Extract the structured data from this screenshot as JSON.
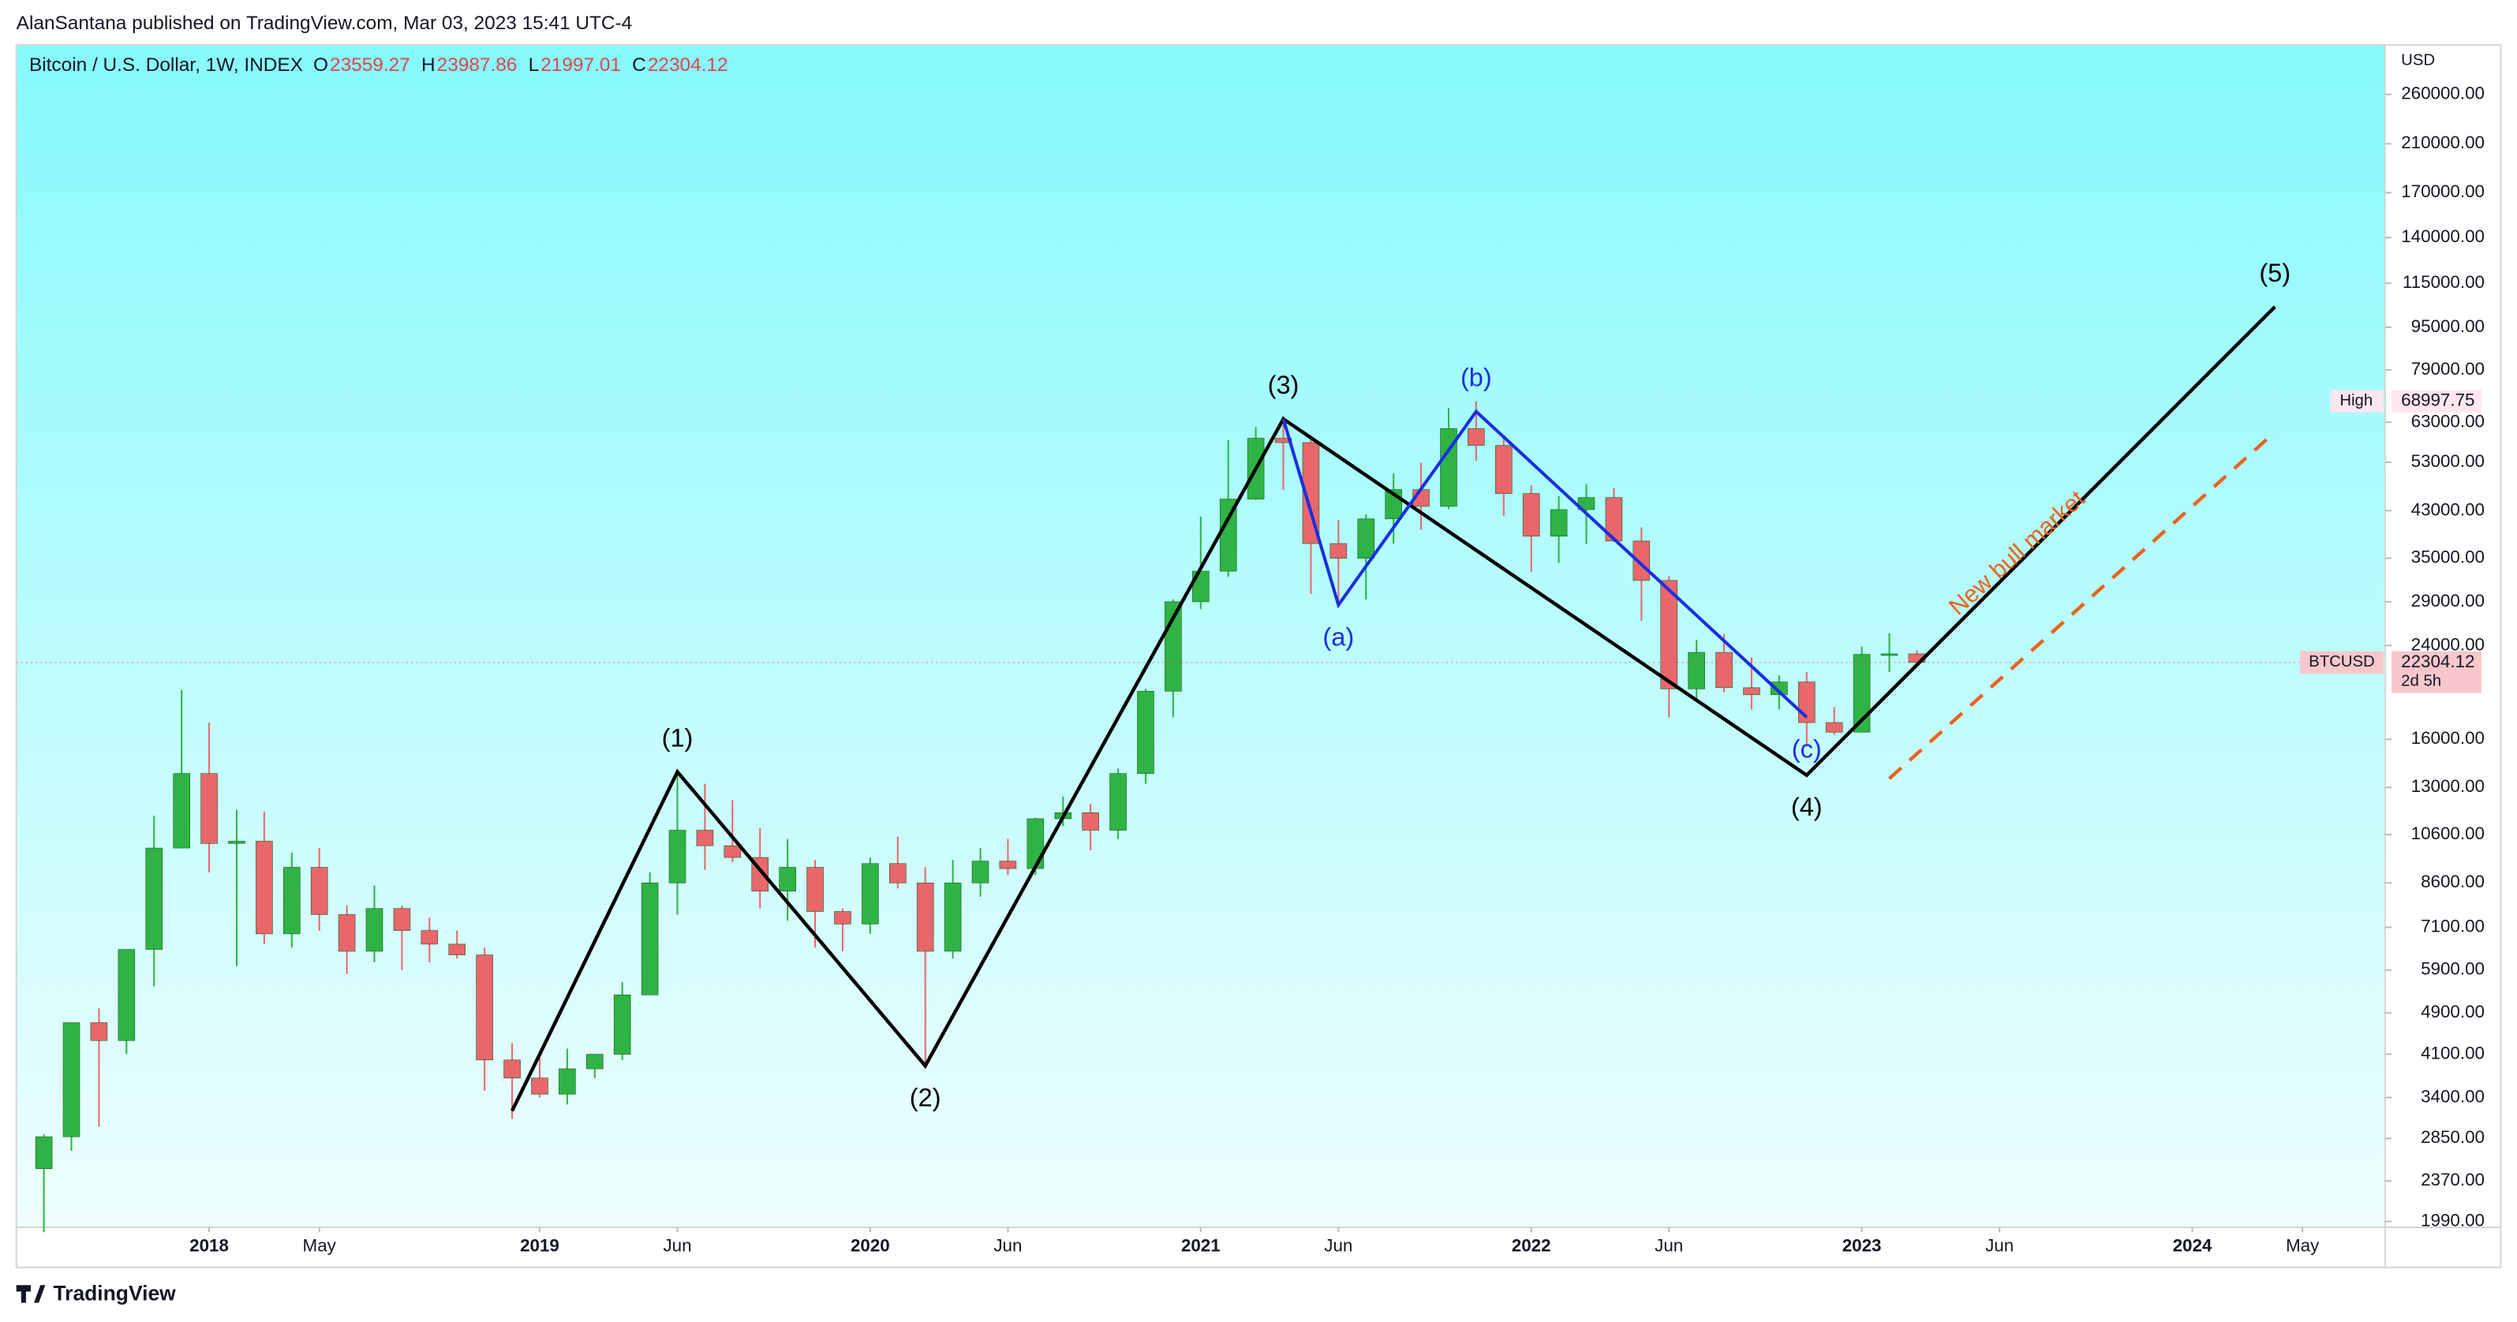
{
  "chart_data": {
    "type": "candlestick",
    "publisher": "AlanSantana published on TradingView.com, Mar 03, 2023 15:41 UTC-4",
    "symbol": "Bitcoin / U.S. Dollar, 1W, INDEX",
    "ohlc_legend": [
      {
        "key": "O",
        "value": 23559.27
      },
      {
        "key": "H",
        "value": 23987.86
      },
      {
        "key": "L",
        "value": 21997.01
      },
      {
        "key": "C",
        "value": 22304.12
      }
    ],
    "currency": "USD",
    "brand": "TradingView",
    "log_scale": true,
    "up_color": "#2fb344",
    "down_color": "#e8676b",
    "x": [
      "2017-07",
      "2017-08",
      "2017-09",
      "2017-10",
      "2017-11",
      "2017-12",
      "2018-01",
      "2018-02",
      "2018-03",
      "2018-04",
      "2018-05",
      "2018-06",
      "2018-07",
      "2018-08",
      "2018-09",
      "2018-10",
      "2018-11",
      "2018-12",
      "2019-01",
      "2019-02",
      "2019-03",
      "2019-04",
      "2019-05",
      "2019-06",
      "2019-07",
      "2019-08",
      "2019-09",
      "2019-10",
      "2019-11",
      "2019-12",
      "2020-01",
      "2020-02",
      "2020-03",
      "2020-04",
      "2020-05",
      "2020-06",
      "2020-07",
      "2020-08",
      "2020-09",
      "2020-10",
      "2020-11",
      "2020-12",
      "2021-01",
      "2021-02",
      "2021-03",
      "2021-04",
      "2021-05",
      "2021-06",
      "2021-07",
      "2021-08",
      "2021-09",
      "2021-10",
      "2021-11",
      "2021-12",
      "2022-01",
      "2022-02",
      "2022-03",
      "2022-04",
      "2022-05",
      "2022-06",
      "2022-07",
      "2022-08",
      "2022-09",
      "2022-10",
      "2022-11",
      "2022-12",
      "2023-01",
      "2023-02",
      "2023-03"
    ],
    "open": [
      2500,
      2870,
      4700,
      4350,
      6450,
      10000,
      13800,
      10200,
      10300,
      6900,
      9200,
      7500,
      6400,
      7700,
      7000,
      6600,
      6300,
      4000,
      3700,
      3450,
      3850,
      4100,
      5300,
      8600,
      10800,
      10100,
      9600,
      8300,
      9200,
      7600,
      7200,
      9350,
      8600,
      6400,
      8600,
      9450,
      9150,
      11350,
      11650,
      10800,
      13800,
      19700,
      29000,
      33100,
      45200,
      58800,
      57700,
      37300,
      35000,
      41500,
      47100,
      43800,
      61300,
      57000,
      46300,
      38500,
      43200,
      45500,
      37700,
      31800,
      19900,
      23300,
      20000,
      19400,
      20500,
      17200,
      16500,
      23100,
      23150
    ],
    "high": [
      2900,
      4700,
      5000,
      6450,
      11500,
      19800,
      17200,
      11800,
      11700,
      9800,
      10000,
      7800,
      8500,
      7800,
      7400,
      7000,
      6500,
      4300,
      4100,
      4200,
      4100,
      5600,
      9000,
      13900,
      13200,
      12300,
      10900,
      10400,
      9500,
      7700,
      9600,
      10500,
      9200,
      9500,
      10000,
      10400,
      11400,
      12500,
      12100,
      14100,
      19900,
      29300,
      41900,
      58300,
      61700,
      64800,
      59500,
      41300,
      42300,
      50500,
      52900,
      67000,
      69000,
      59000,
      48000,
      45800,
      48200,
      47400,
      40000,
      32400,
      24600,
      25200,
      22800,
      21100,
      21400,
      18400,
      23900,
      25300,
      23500
    ],
    "low": [
      1900,
      2700,
      3000,
      4100,
      5500,
      10000,
      9000,
      6000,
      6600,
      6500,
      7000,
      5800,
      6100,
      5900,
      6100,
      6200,
      3500,
      3100,
      3400,
      3300,
      3700,
      4000,
      5300,
      7500,
      9100,
      9400,
      7700,
      7300,
      6500,
      6400,
      6900,
      8400,
      3900,
      6200,
      8100,
      8900,
      8900,
      11000,
      9900,
      10400,
      13200,
      17600,
      28100,
      32300,
      45000,
      47000,
      30000,
      28800,
      29300,
      37300,
      39600,
      43300,
      53300,
      42000,
      33000,
      34300,
      37200,
      37600,
      26700,
      17600,
      18800,
      19600,
      18200,
      18200,
      15500,
      16300,
      16500,
      21400,
      21997
    ],
    "close": [
      2870,
      4700,
      4350,
      6450,
      10000,
      13800,
      10200,
      10300,
      6900,
      9200,
      7500,
      6400,
      7700,
      7000,
      6600,
      6300,
      4000,
      3700,
      3450,
      3850,
      4100,
      5300,
      8600,
      10800,
      10100,
      9600,
      8300,
      9200,
      7600,
      7200,
      9350,
      8600,
      6400,
      8600,
      9450,
      9150,
      11350,
      11650,
      10800,
      13800,
      19700,
      29000,
      33100,
      45200,
      58800,
      57700,
      37300,
      35000,
      41500,
      47100,
      43800,
      61300,
      57000,
      46300,
      38500,
      43200,
      45500,
      37700,
      31800,
      19900,
      23300,
      20000,
      19400,
      20500,
      17200,
      16500,
      23100,
      23150,
      22304
    ],
    "xlim": [
      "2017-06",
      "2024-08"
    ],
    "xticks": [
      {
        "value": "2018-01",
        "label": "2018"
      },
      {
        "value": "2018-05",
        "label": "May"
      },
      {
        "value": "2019-01",
        "label": "2019"
      },
      {
        "value": "2019-06",
        "label": "Jun"
      },
      {
        "value": "2020-01",
        "label": "2020"
      },
      {
        "value": "2020-06",
        "label": "Jun"
      },
      {
        "value": "2021-01",
        "label": "2021"
      },
      {
        "value": "2021-06",
        "label": "Jun"
      },
      {
        "value": "2022-01",
        "label": "2022"
      },
      {
        "value": "2022-06",
        "label": "Jun"
      },
      {
        "value": "2023-01",
        "label": "2023"
      },
      {
        "value": "2023-06",
        "label": "Jun"
      },
      {
        "value": "2024-01",
        "label": "2024"
      },
      {
        "value": "2024-05",
        "label": "May"
      }
    ],
    "ylim": [
      1940,
      322000
    ],
    "yticks": [
      {
        "value": 260000,
        "label": "260000.00"
      },
      {
        "value": 210000,
        "label": "210000.00"
      },
      {
        "value": 170000,
        "label": "170000.00"
      },
      {
        "value": 140000,
        "label": "140000.00"
      },
      {
        "value": 115000,
        "label": "115000.00"
      },
      {
        "value": 95000,
        "label": "95000.00"
      },
      {
        "value": 79000,
        "label": "79000.00"
      },
      {
        "value": 63000,
        "label": "63000.00"
      },
      {
        "value": 53000,
        "label": "53000.00"
      },
      {
        "value": 43000,
        "label": "43000.00"
      },
      {
        "value": 35000,
        "label": "35000.00"
      },
      {
        "value": 29000,
        "label": "29000.00"
      },
      {
        "value": 24000,
        "label": "24000.00"
      },
      {
        "value": 16000,
        "label": "16000.00"
      },
      {
        "value": 13000,
        "label": "13000.00"
      },
      {
        "value": 10600,
        "label": "10600.00"
      },
      {
        "value": 8600,
        "label": "8600.00"
      },
      {
        "value": 7100,
        "label": "7100.00"
      },
      {
        "value": 5900,
        "label": "5900.00"
      },
      {
        "value": 4900,
        "label": "4900.00"
      },
      {
        "value": 4100,
        "label": "4100.00"
      },
      {
        "value": 3400,
        "label": "3400.00"
      },
      {
        "value": 2850,
        "label": "2850.00"
      },
      {
        "value": 2370,
        "label": "2370.00"
      },
      {
        "value": 1990,
        "label": "1990.00"
      }
    ],
    "price_markers": [
      {
        "name": "High",
        "value": 68997.75,
        "color": "#ffe6ef"
      },
      {
        "name": "BTCUSD",
        "value": 22304.12,
        "countdown": "2d 5h",
        "color": "#f7c7cb"
      }
    ],
    "waves": [
      {
        "color": "#000000",
        "points": [
          {
            "x": "2018-12",
            "y": 3210,
            "label": null
          },
          {
            "x": "2019-06",
            "y": 13900,
            "label": "(1)"
          },
          {
            "x": "2020-03",
            "y": 3900,
            "label": "(2)"
          },
          {
            "x": "2021-04",
            "y": 63900,
            "label": "(3)"
          },
          {
            "x": "2022-11",
            "y": 13700,
            "label": "(4)"
          },
          {
            "x": "2024-04",
            "y": 103800,
            "label": "(5)"
          }
        ]
      },
      {
        "color": "#1a2fe0",
        "points": [
          {
            "x": "2021-04",
            "y": 63900,
            "label": null
          },
          {
            "x": "2021-06",
            "y": 28600,
            "label": "(a)"
          },
          {
            "x": "2021-11",
            "y": 66000,
            "label": "(b)"
          },
          {
            "x": "2022-11",
            "y": 17600,
            "label": "(c)"
          }
        ]
      }
    ],
    "trend_annotation": {
      "text": "New bull market",
      "color": "#e8641e",
      "start": {
        "x": "2023-02",
        "y": 13500
      },
      "end": {
        "x": "2024-04",
        "y": 60400
      }
    }
  }
}
